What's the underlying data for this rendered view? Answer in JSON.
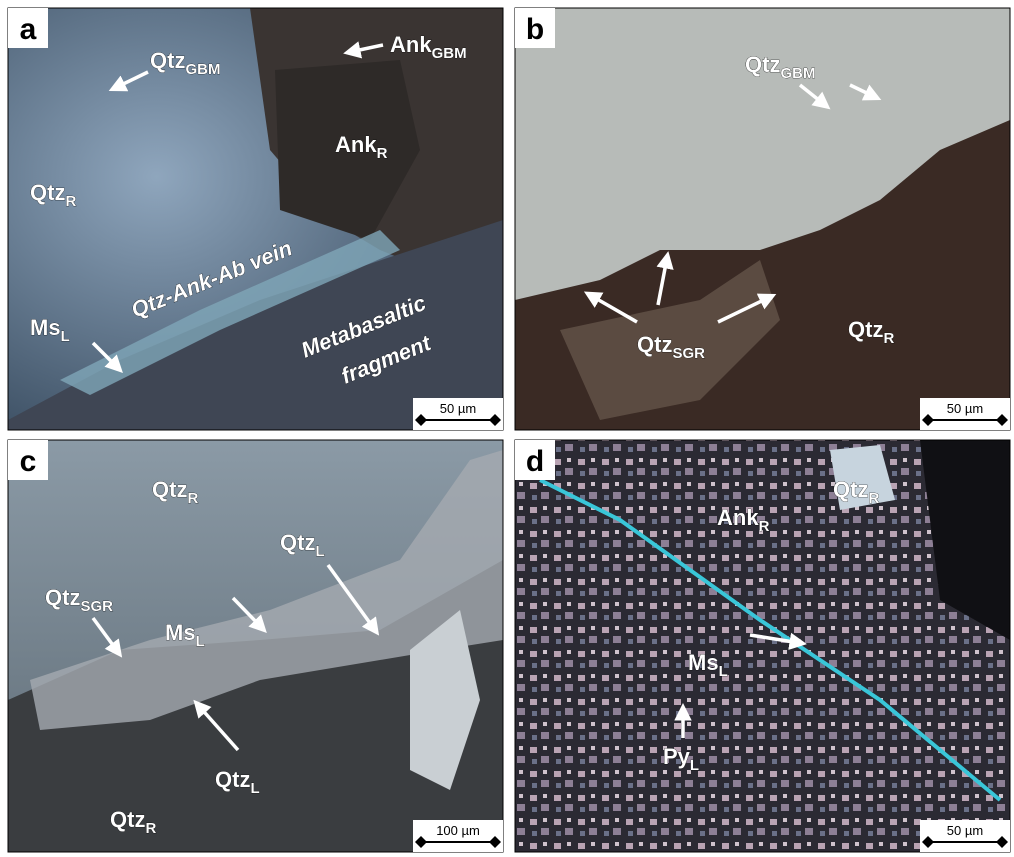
{
  "panels": [
    {
      "letter": "a",
      "scale_bar": "50 µm",
      "labels": [
        {
          "text": "Qtz",
          "sub": "GBM"
        },
        {
          "text": "Ank",
          "sub": "GBM"
        },
        {
          "text": "Ank",
          "sub": "R"
        },
        {
          "text": "Qtz",
          "sub": "R"
        },
        {
          "text": "Qtz-Ank-Ab vein"
        },
        {
          "text": "Ms",
          "sub": "L"
        },
        {
          "text": "Metabasaltic"
        },
        {
          "text": "fragment"
        }
      ]
    },
    {
      "letter": "b",
      "scale_bar": "50 µm",
      "labels": [
        {
          "text": "Qtz",
          "sub": "GBM"
        },
        {
          "text": "Qtz",
          "sub": "SGR"
        },
        {
          "text": "Qtz",
          "sub": "R"
        }
      ]
    },
    {
      "letter": "c",
      "scale_bar": "100 µm",
      "labels": [
        {
          "text": "Qtz",
          "sub": "R"
        },
        {
          "text": "Qtz",
          "sub": "L"
        },
        {
          "text": "Ms",
          "sub": "L"
        },
        {
          "text": "Qtz",
          "sub": "SGR"
        },
        {
          "text": "Qtz",
          "sub": "L"
        },
        {
          "text": "Qtz",
          "sub": "R"
        }
      ]
    },
    {
      "letter": "d",
      "scale_bar": "50 µm",
      "labels": [
        {
          "text": "Qtz",
          "sub": "R"
        },
        {
          "text": "Ank",
          "sub": "R"
        },
        {
          "text": "Ms",
          "sub": "L"
        },
        {
          "text": "Py",
          "sub": "L"
        }
      ]
    }
  ]
}
